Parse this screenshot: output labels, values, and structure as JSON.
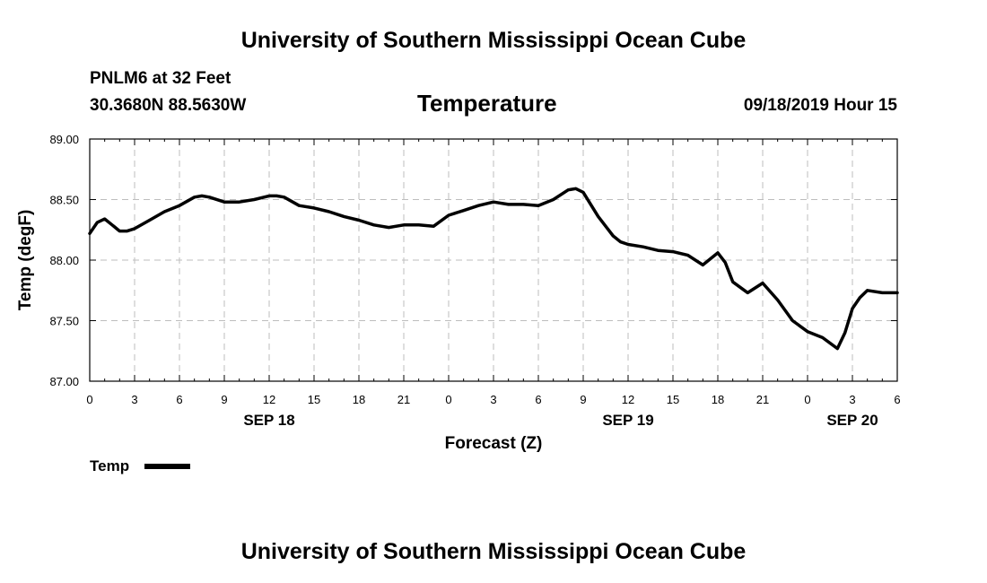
{
  "header": {
    "title": "University of Southern Mississippi Ocean Cube",
    "station": "PNLM6 at 32 Feet",
    "coords": "30.3680N 88.5630W",
    "timestamp": "09/18/2019 Hour 15"
  },
  "footer": {
    "title": "University of Southern Mississippi Ocean Cube"
  },
  "colors": {
    "line": "#000000",
    "grid": "#bdbdbd",
    "background": "#ffffff"
  },
  "chart_data": {
    "type": "line",
    "title": "Temperature",
    "xlabel": "Forecast (Z)",
    "ylabel": "Temp (degF)",
    "xlim": [
      0,
      54
    ],
    "ylim": [
      87.0,
      89.0
    ],
    "y_ticks": [
      87.0,
      87.5,
      88.0,
      88.5,
      89.0
    ],
    "y_tick_labels": [
      "87.00",
      "87.50",
      "88.00",
      "88.50",
      "89.00"
    ],
    "x_ticks": [
      0,
      3,
      6,
      9,
      12,
      15,
      18,
      21,
      24,
      27,
      30,
      33,
      36,
      39,
      42,
      45,
      48,
      51,
      54
    ],
    "x_tick_labels": [
      "0",
      "3",
      "6",
      "9",
      "12",
      "15",
      "18",
      "21",
      "0",
      "3",
      "6",
      "9",
      "12",
      "15",
      "18",
      "21",
      "0",
      "3",
      "6"
    ],
    "date_labels": [
      {
        "hour": 12,
        "label": "SEP 18"
      },
      {
        "hour": 36,
        "label": "SEP 19"
      },
      {
        "hour": 51,
        "label": "SEP 20"
      }
    ],
    "grid": true,
    "legend": [
      {
        "name": "Temp",
        "position": "bottom-left"
      }
    ],
    "series": [
      {
        "name": "Temp",
        "x": [
          0,
          0.5,
          1,
          1.5,
          2,
          2.5,
          3,
          4,
          5,
          6,
          7,
          7.5,
          8,
          9,
          10,
          11,
          12,
          12.5,
          13,
          14,
          15,
          16,
          17,
          18,
          19,
          20,
          21,
          22,
          23,
          24,
          25,
          26,
          27,
          28,
          29,
          30,
          31,
          32,
          32.5,
          33,
          34,
          35,
          35.5,
          36,
          37,
          38,
          39,
          40,
          41,
          42,
          42.5,
          43,
          44,
          45,
          46,
          47,
          48,
          49,
          50,
          50.5,
          51,
          51.5,
          52,
          53,
          54
        ],
        "values": [
          88.22,
          88.31,
          88.34,
          88.29,
          88.24,
          88.24,
          88.26,
          88.33,
          88.4,
          88.45,
          88.52,
          88.53,
          88.52,
          88.48,
          88.48,
          88.5,
          88.53,
          88.53,
          88.52,
          88.45,
          88.43,
          88.4,
          88.36,
          88.33,
          88.29,
          88.27,
          88.29,
          88.29,
          88.28,
          88.37,
          88.41,
          88.45,
          88.48,
          88.46,
          88.46,
          88.45,
          88.5,
          88.58,
          88.59,
          88.56,
          88.36,
          88.2,
          88.15,
          88.13,
          88.11,
          88.08,
          88.07,
          88.04,
          87.96,
          88.06,
          87.98,
          87.82,
          87.73,
          87.81,
          87.67,
          87.5,
          87.41,
          87.36,
          87.27,
          87.4,
          87.6,
          87.69,
          87.75,
          87.73,
          87.73
        ]
      }
    ]
  }
}
